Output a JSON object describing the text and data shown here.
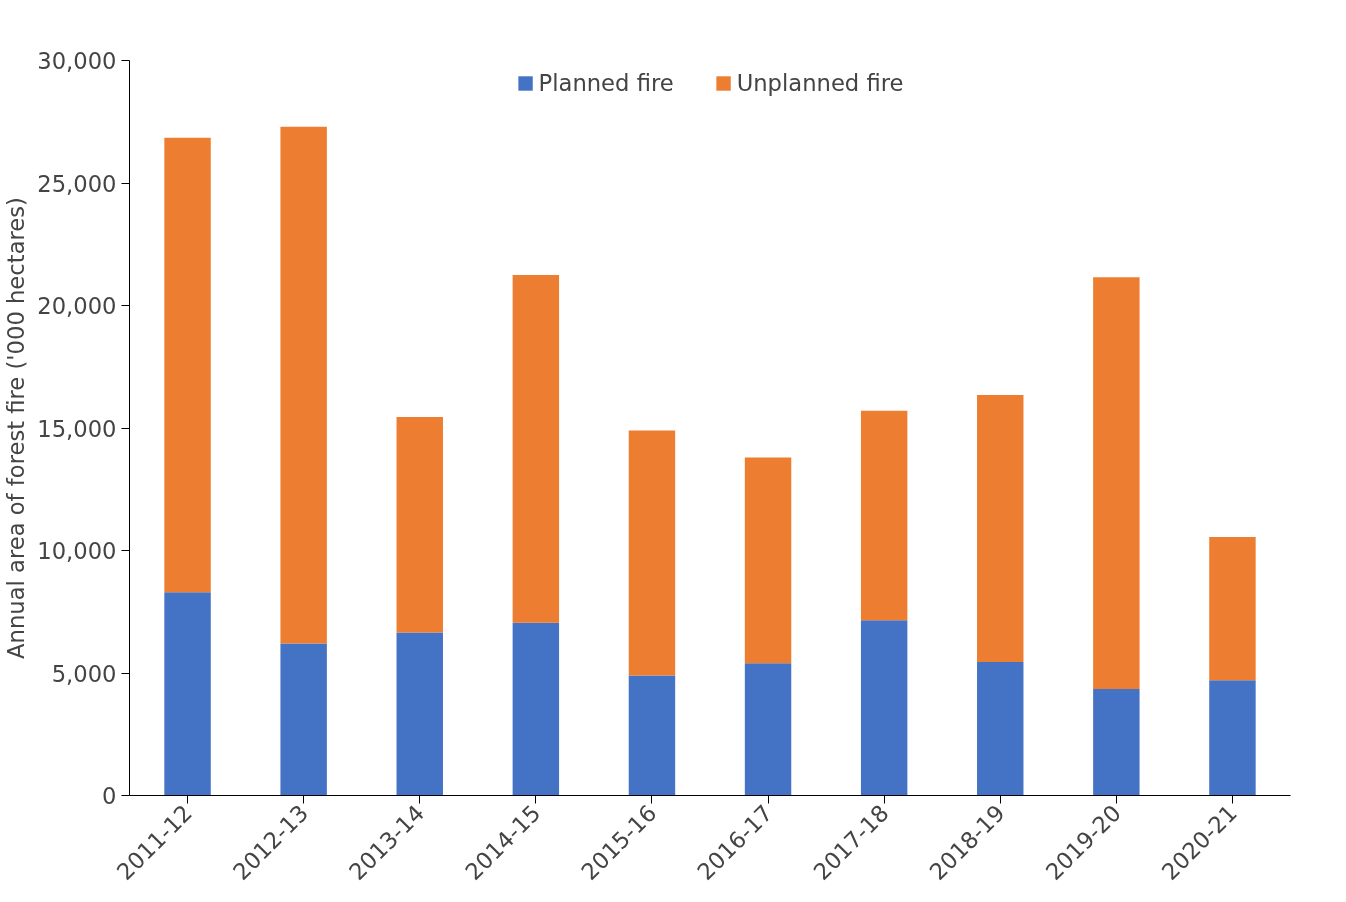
{
  "chart_data": {
    "type": "bar",
    "stacked": true,
    "ylabel": "Annual area of forest fire ('000 hectares)",
    "categories": [
      "2011-12",
      "2012-13",
      "2013-14",
      "2014-15",
      "2015-16",
      "2016-17",
      "2017-18",
      "2018-19",
      "2019-20",
      "2020-21"
    ],
    "series": [
      {
        "name": "Planned fire",
        "color": "#4472c4",
        "values": [
          8300,
          6200,
          6650,
          7050,
          4900,
          5400,
          7150,
          5450,
          4350,
          4700
        ]
      },
      {
        "name": "Unplanned fire",
        "color": "#ed7d31",
        "values": [
          18550,
          21100,
          8800,
          14200,
          10000,
          8400,
          8550,
          10900,
          16800,
          5850
        ]
      }
    ],
    "ylim": [
      0,
      30000
    ],
    "yticks": [
      {
        "value": 0,
        "label": "0"
      },
      {
        "value": 5000,
        "label": "5,000"
      },
      {
        "value": 10000,
        "label": "10,000"
      },
      {
        "value": 15000,
        "label": "15,000"
      },
      {
        "value": 20000,
        "label": "20,000"
      },
      {
        "value": 25000,
        "label": "25,000"
      },
      {
        "value": 30000,
        "label": "30,000"
      }
    ],
    "grid": false,
    "legend": "top"
  }
}
